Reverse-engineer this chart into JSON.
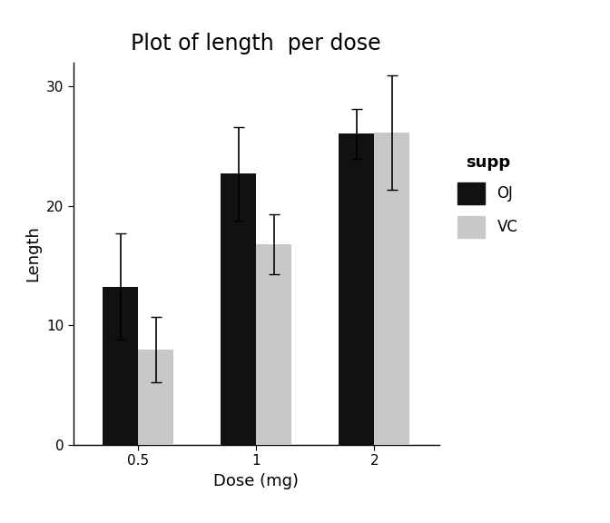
{
  "title": "Plot of length  per dose",
  "xlabel": "Dose (mg)",
  "ylabel": "Length",
  "doses": [
    "0.5",
    "1",
    "2"
  ],
  "OJ_means": [
    13.23,
    22.7,
    26.06
  ],
  "VC_means": [
    7.98,
    16.77,
    26.14
  ],
  "OJ_errors": [
    4.46,
    3.91,
    2.09
  ],
  "VC_errors": [
    2.75,
    2.52,
    4.8
  ],
  "OJ_color": "#111111",
  "VC_color": "#c8c8c8",
  "bar_width": 0.3,
  "ylim": [
    0,
    32
  ],
  "yticks": [
    0,
    10,
    20,
    30
  ],
  "legend_title": "supp",
  "legend_labels": [
    "OJ",
    "VC"
  ],
  "title_fontsize": 17,
  "axis_label_fontsize": 13,
  "tick_fontsize": 11,
  "legend_fontsize": 12,
  "legend_title_fontsize": 13,
  "background_color": "#ffffff",
  "capsize": 4
}
